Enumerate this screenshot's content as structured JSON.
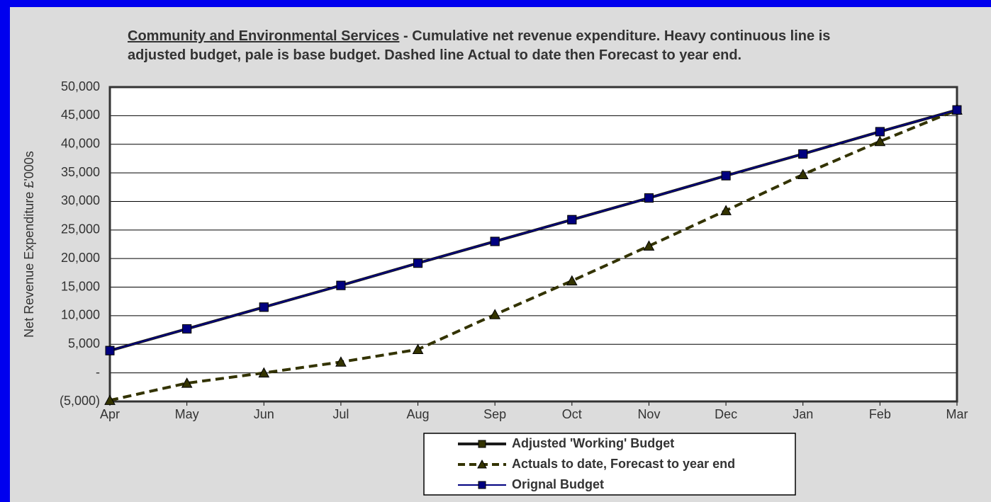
{
  "chart_data": {
    "type": "line",
    "title": {
      "heading": "Community and Environmental Services",
      "text": "- Cumulative net revenue expenditure. Heavy continuous line is adjusted  budget, pale is base budget. Dashed line Actual to date then Forecast to year end."
    },
    "y_label": "Net Revenue  Expenditure  £'000s",
    "categories": [
      "Apr",
      "May",
      "Jun",
      "Jul",
      "Aug",
      "Sep",
      "Oct",
      "Nov",
      "Dec",
      "Jan",
      "Feb",
      "Mar"
    ],
    "series": [
      {
        "name": "Adjusted 'Working' Budget",
        "color": "#1a1a1a",
        "marker": "square",
        "marker_color": "#333300",
        "dashed": false,
        "width": 4,
        "values": [
          3900,
          7700,
          11500,
          15300,
          19200,
          23000,
          26800,
          30600,
          34500,
          38300,
          42200,
          46000
        ]
      },
      {
        "name": "Actuals to date, Forecast to year end",
        "color": "#333300",
        "marker": "triangle",
        "marker_color": "#333300",
        "dashed": true,
        "width": 4,
        "values": [
          -4800,
          -1800,
          0,
          1900,
          4100,
          10200,
          16100,
          22200,
          28400,
          34700,
          40500,
          46000
        ]
      },
      {
        "name": "Orignal Budget",
        "color": "#000080",
        "marker": "square",
        "marker_color": "#000080",
        "dashed": false,
        "width": 2,
        "values": [
          3900,
          7700,
          11500,
          15300,
          19200,
          23000,
          26800,
          30600,
          34500,
          38300,
          42200,
          46000
        ]
      }
    ],
    "ylim": [
      -5000,
      50000
    ],
    "yticks": [
      {
        "value": -5000,
        "label": "(5,000)"
      },
      {
        "value": 0,
        "label": "-"
      },
      {
        "value": 5000,
        "label": "5,000"
      },
      {
        "value": 10000,
        "label": "10,000"
      },
      {
        "value": 15000,
        "label": "15,000"
      },
      {
        "value": 20000,
        "label": "20,000"
      },
      {
        "value": 25000,
        "label": "25,000"
      },
      {
        "value": 30000,
        "label": "30,000"
      },
      {
        "value": 35000,
        "label": "35,000"
      },
      {
        "value": 40000,
        "label": "40,000"
      },
      {
        "value": 45000,
        "label": "45,000"
      },
      {
        "value": 50000,
        "label": "50,000"
      }
    ],
    "grid": true,
    "legend": "bottom"
  }
}
